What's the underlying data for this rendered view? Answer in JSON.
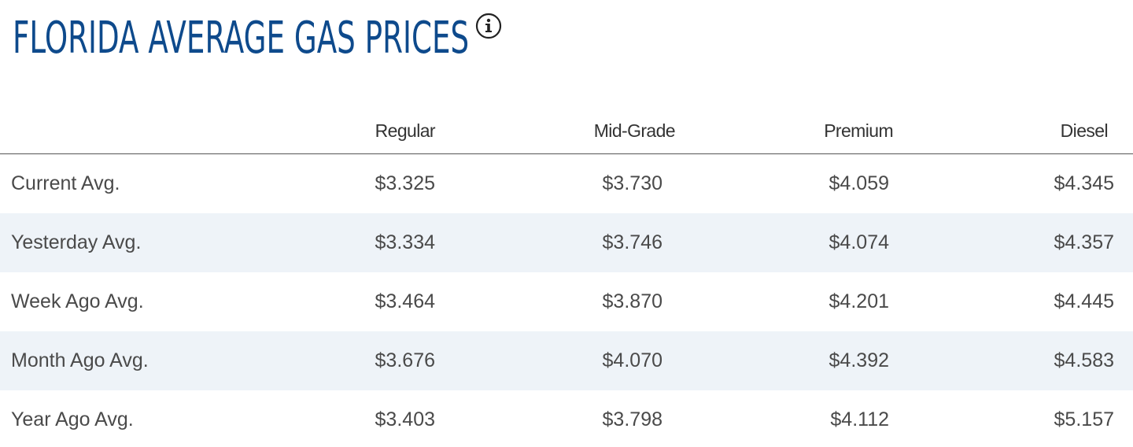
{
  "title": "FLORIDA AVERAGE GAS PRICES",
  "info_icon": "info-icon",
  "colors": {
    "title": "#0e4a8c",
    "alt_row": "#eef3f8",
    "text": "#4a4a4a"
  },
  "table": {
    "columns": [
      "Regular",
      "Mid-Grade",
      "Premium",
      "Diesel"
    ],
    "rows": [
      {
        "label": "Current Avg.",
        "values": [
          "$3.325",
          "$3.730",
          "$4.059",
          "$4.345"
        ]
      },
      {
        "label": "Yesterday Avg.",
        "values": [
          "$3.334",
          "$3.746",
          "$4.074",
          "$4.357"
        ]
      },
      {
        "label": "Week Ago Avg.",
        "values": [
          "$3.464",
          "$3.870",
          "$4.201",
          "$4.445"
        ]
      },
      {
        "label": "Month Ago Avg.",
        "values": [
          "$3.676",
          "$4.070",
          "$4.392",
          "$4.583"
        ]
      },
      {
        "label": "Year Ago Avg.",
        "values": [
          "$3.403",
          "$3.798",
          "$4.112",
          "$5.157"
        ]
      }
    ]
  }
}
